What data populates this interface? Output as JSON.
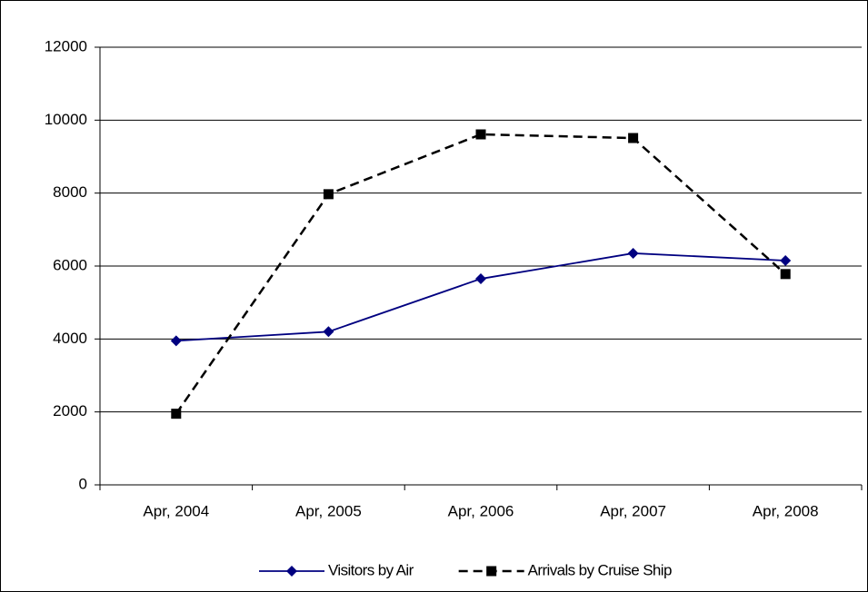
{
  "chart_data": {
    "type": "line",
    "categories": [
      "Apr, 2004",
      "Apr, 2005",
      "Apr, 2006",
      "Apr, 2007",
      "Apr, 2008"
    ],
    "series": [
      {
        "name": "Visitors by Air",
        "color": "#000080",
        "dashed": false,
        "marker": "diamond",
        "values": [
          3950,
          4200,
          5650,
          6350,
          6150
        ]
      },
      {
        "name": "Arrivals by Cruise Ship",
        "color": "#000000",
        "dashed": true,
        "marker": "square",
        "values": [
          1950,
          7970,
          9610,
          9510,
          5780
        ]
      }
    ],
    "ylim": [
      0,
      12000
    ],
    "yticks": [
      0,
      2000,
      4000,
      6000,
      8000,
      10000,
      12000
    ],
    "grid": true,
    "legend": "bottom"
  }
}
